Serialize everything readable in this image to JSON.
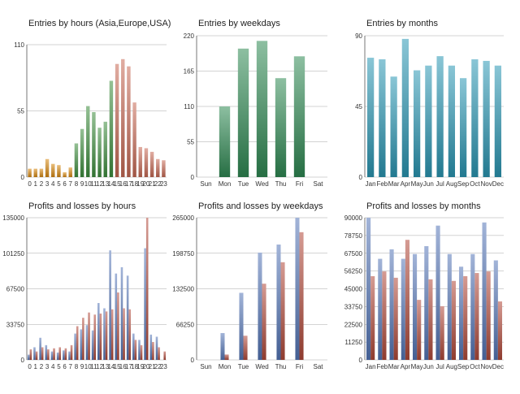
{
  "colors": {
    "hours_asia": "#d98a12",
    "hours_europe": "#3e8e3e",
    "hours_usa": "#c86a55",
    "weekdays": "#2f8a54",
    "months": "#2a97b4",
    "profit": "#5577b8",
    "loss": "#b24a3a"
  },
  "chart_data": [
    {
      "type": "bar",
      "title": "Entries by hours (Asia,Europe,USA)",
      "categories": [
        "0",
        "1",
        "2",
        "3",
        "4",
        "5",
        "6",
        "7",
        "8",
        "9",
        "10",
        "11",
        "12",
        "13",
        "14",
        "15",
        "16",
        "17",
        "18",
        "19",
        "20",
        "21",
        "22",
        "23"
      ],
      "values": [
        7,
        7,
        7,
        15,
        11,
        10,
        4,
        8,
        28,
        40,
        59,
        54,
        41,
        46,
        80,
        94,
        98,
        92,
        62,
        25,
        24,
        21,
        15,
        14
      ],
      "ylim": [
        0,
        110
      ],
      "yticks": [
        "0",
        "55",
        "110"
      ]
    },
    {
      "type": "bar",
      "title": "Entries by weekdays",
      "categories": [
        "Sun",
        "Mon",
        "Tue",
        "Wed",
        "Thu",
        "Fri",
        "Sat"
      ],
      "values": [
        0,
        110,
        200,
        212,
        154,
        188,
        0
      ],
      "ylim": [
        0,
        220
      ],
      "yticks": [
        "0",
        "55",
        "110",
        "165",
        "220"
      ]
    },
    {
      "type": "bar",
      "title": "Entries by months",
      "categories": [
        "Jan",
        "Feb",
        "Mar",
        "Apr",
        "May",
        "Jun",
        "Jul",
        "Aug",
        "Sep",
        "Oct",
        "Nov",
        "Dec"
      ],
      "values": [
        76,
        75,
        64,
        88,
        68,
        71,
        77,
        71,
        63,
        75,
        74,
        71
      ],
      "ylim": [
        0,
        90
      ],
      "yticks": [
        "0",
        "45",
        "90"
      ]
    },
    {
      "type": "bar",
      "title": "Profits and losses by hours",
      "categories": [
        "0",
        "1",
        "2",
        "3",
        "4",
        "5",
        "6",
        "7",
        "8",
        "9",
        "10",
        "11",
        "12",
        "13",
        "14",
        "15",
        "16",
        "17",
        "18",
        "19",
        "20",
        "21",
        "22",
        "23"
      ],
      "series": [
        {
          "values": [
            5000,
            12000,
            21000,
            14000,
            8000,
            7000,
            9000,
            8000,
            25000,
            29000,
            33000,
            28000,
            54000,
            49000,
            104000,
            82000,
            88000,
            80000,
            25000,
            19000,
            106000,
            24000,
            22000,
            0
          ]
        },
        {
          "values": [
            10000,
            8000,
            12000,
            10000,
            11000,
            12000,
            11000,
            14000,
            32000,
            40000,
            45000,
            43000,
            44000,
            46000,
            48000,
            64000,
            49000,
            48000,
            19000,
            14000,
            135000,
            17000,
            12000,
            8000
          ]
        }
      ],
      "ylim": [
        0,
        135000
      ],
      "yticks": [
        "0",
        "33750",
        "67500",
        "101250",
        "135000"
      ]
    },
    {
      "type": "bar",
      "title": "Profits and losses by weekdays",
      "categories": [
        "Sun",
        "Mon",
        "Tue",
        "Wed",
        "Thu",
        "Fri",
        "Sat"
      ],
      "series": [
        {
          "values": [
            0,
            50000,
            125000,
            200000,
            215000,
            265000,
            0
          ]
        },
        {
          "values": [
            0,
            10000,
            45000,
            142000,
            182000,
            238000,
            0
          ]
        }
      ],
      "ylim": [
        0,
        265000
      ],
      "yticks": [
        "0",
        "66250",
        "132500",
        "198750",
        "265000"
      ]
    },
    {
      "type": "bar",
      "title": "Profits and losses by months",
      "categories": [
        "Jan",
        "Feb",
        "Mar",
        "Apr",
        "May",
        "Jun",
        "Jul",
        "Aug",
        "Sep",
        "Oct",
        "Nov",
        "Dec"
      ],
      "series": [
        {
          "values": [
            90000,
            64000,
            70000,
            64000,
            67000,
            72000,
            85000,
            67000,
            59000,
            67000,
            87000,
            63000
          ]
        },
        {
          "values": [
            53000,
            56000,
            52000,
            76000,
            38000,
            51000,
            34000,
            50000,
            53000,
            55000,
            56000,
            37000
          ]
        }
      ],
      "ylim": [
        0,
        90000
      ],
      "yticks": [
        "0",
        "11250",
        "22500",
        "33750",
        "45000",
        "56250",
        "67500",
        "78750",
        "90000"
      ]
    }
  ]
}
